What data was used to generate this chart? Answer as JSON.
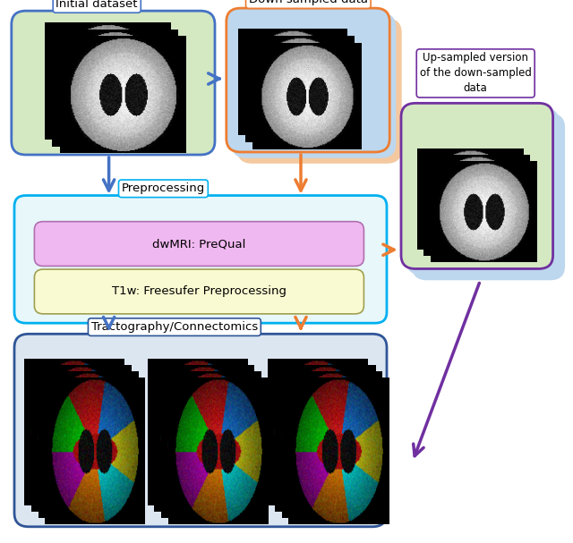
{
  "bg_color": "#ffffff",
  "colors": {
    "blue_edge": "#4472c4",
    "orange_edge": "#ed7d31",
    "purple_edge": "#7030a0",
    "cyan_edge": "#00b0f0",
    "dark_blue_edge": "#2f5597",
    "green_fill": "#d4e8c2",
    "light_blue_fill": "#bdd7ee",
    "peach_fill": "#f4c9a0",
    "preprocessing_fill": "#e8f7fa",
    "tractography_fill": "#dce6f1",
    "pink_fill": "#f0b8f0",
    "yellow_fill": "#fafad2",
    "white": "#ffffff",
    "blue_arrow": "#4472c4",
    "orange_arrow": "#ed7d31",
    "purple_arrow": "#7030a0"
  },
  "labels": {
    "initial": "Initial dataset",
    "down_sampled": "Down sampled data",
    "up_sampled": "Up-sampled version\nof the down-sampled\ndata",
    "preprocessing": "Preprocessing",
    "dwmri": "dwMRI: PreQual",
    "t1w": "T1w: Freesufer Preprocessing",
    "tractography": "Tractography/Connectomics"
  }
}
